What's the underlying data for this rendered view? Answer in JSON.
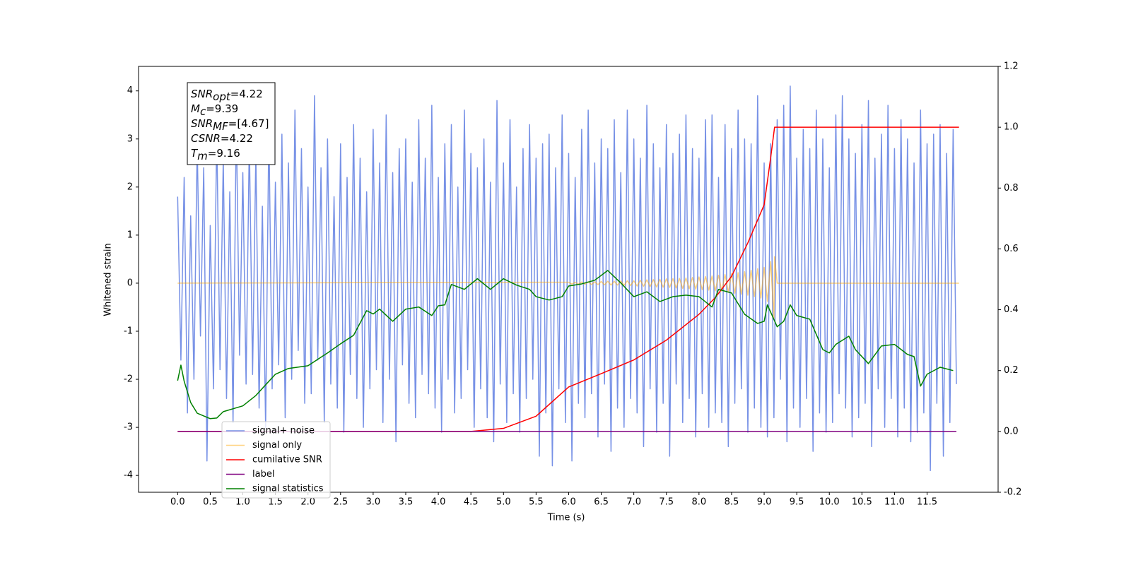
{
  "chart_data": {
    "type": "line",
    "xlabel": "Time (s)",
    "ylabel": "Whitened strain",
    "xlim": [
      -0.6,
      12.59
    ],
    "ylim": [
      -4.35,
      4.51
    ],
    "y2lim": [
      -0.2,
      1.2
    ],
    "xticks": [
      {
        "value": 0,
        "label": "0.0"
      },
      0.5,
      {
        "value": 1,
        "label": "1.0"
      },
      1.5,
      {
        "value": 2,
        "label": "2.0"
      },
      2.5,
      {
        "value": 3,
        "label": "3.0"
      },
      3.5,
      {
        "value": 4,
        "label": "4.0"
      },
      4.5,
      {
        "value": 5,
        "label": "5.0"
      },
      5.5,
      {
        "value": 6,
        "label": "6.0"
      },
      6.5,
      {
        "value": 7,
        "label": "7.0"
      },
      7.5,
      {
        "value": 8,
        "label": "8.0"
      },
      8.5,
      {
        "value": 9,
        "label": "9.0"
      },
      9.5,
      {
        "value": 10,
        "label": "10.0"
      },
      10.5,
      {
        "value": 11,
        "label": "11.0"
      },
      11.5
    ],
    "yticks": [
      -4,
      -3,
      -2,
      -1,
      0,
      1,
      2,
      3,
      4
    ],
    "y2ticks": [
      -0.2,
      {
        "value": 0,
        "label": "0.0"
      },
      0.2,
      0.4,
      0.6,
      0.8,
      {
        "value": 1,
        "label": "1.0"
      },
      1.2
    ],
    "annotation": [
      {
        "main": "SNR",
        "sub": "opt",
        "rest": "=4.22"
      },
      {
        "main": "M",
        "sub": "c",
        "rest": "=9.39"
      },
      {
        "main": "SNR",
        "sub": "MF",
        "rest": "=[4.67]"
      },
      {
        "main": "CSNR",
        "sub": "",
        "rest": "=4.22"
      },
      {
        "main": "T",
        "sub": "m",
        "rest": "=9.16"
      }
    ],
    "legend": "lower left",
    "series": [
      {
        "name": "signal+ noise",
        "color": "#7791e6",
        "axis": "y",
        "x": [
          0,
          0.05,
          0.1,
          0.15,
          0.2,
          0.25,
          0.3,
          0.35,
          0.4,
          0.45,
          0.5,
          0.55,
          0.6,
          0.65,
          0.7,
          0.75,
          0.8,
          0.85,
          0.9,
          0.95,
          1,
          1.05,
          1.1,
          1.15,
          1.2,
          1.25,
          1.3,
          1.35,
          1.4,
          1.45,
          1.5,
          1.55,
          1.6,
          1.65,
          1.7,
          1.75,
          1.8,
          1.85,
          1.9,
          1.95,
          2,
          2.05,
          2.1,
          2.15,
          2.2,
          2.25,
          2.3,
          2.35,
          2.4,
          2.45,
          2.5,
          2.55,
          2.6,
          2.65,
          2.7,
          2.75,
          2.8,
          2.85,
          2.9,
          2.95,
          3,
          3.05,
          3.1,
          3.15,
          3.2,
          3.25,
          3.3,
          3.35,
          3.4,
          3.45,
          3.5,
          3.55,
          3.6,
          3.65,
          3.7,
          3.75,
          3.8,
          3.85,
          3.9,
          3.95,
          4,
          4.05,
          4.1,
          4.15,
          4.2,
          4.25,
          4.3,
          4.35,
          4.4,
          4.45,
          4.5,
          4.55,
          4.6,
          4.65,
          4.7,
          4.75,
          4.8,
          4.85,
          4.9,
          4.95,
          5,
          5.05,
          5.1,
          5.15,
          5.2,
          5.25,
          5.3,
          5.35,
          5.4,
          5.45,
          5.5,
          5.55,
          5.6,
          5.65,
          5.7,
          5.75,
          5.8,
          5.85,
          5.9,
          5.95,
          6,
          6.05,
          6.1,
          6.15,
          6.2,
          6.25,
          6.3,
          6.35,
          6.4,
          6.45,
          6.5,
          6.55,
          6.6,
          6.65,
          6.7,
          6.75,
          6.8,
          6.85,
          6.9,
          6.95,
          7,
          7.05,
          7.1,
          7.15,
          7.2,
          7.25,
          7.3,
          7.35,
          7.4,
          7.45,
          7.5,
          7.55,
          7.6,
          7.65,
          7.7,
          7.75,
          7.8,
          7.85,
          7.9,
          7.95,
          8,
          8.05,
          8.1,
          8.15,
          8.2,
          8.25,
          8.3,
          8.35,
          8.4,
          8.45,
          8.5,
          8.55,
          8.6,
          8.65,
          8.7,
          8.75,
          8.8,
          8.85,
          8.9,
          8.95,
          9,
          9.05,
          9.1,
          9.15,
          9.2,
          9.25,
          9.3,
          9.35,
          9.4,
          9.45,
          9.5,
          9.55,
          9.6,
          9.65,
          9.7,
          9.75,
          9.8,
          9.85,
          9.9,
          9.95,
          10,
          10.05,
          10.1,
          10.15,
          10.2,
          10.25,
          10.3,
          10.35,
          10.4,
          10.45,
          10.5,
          10.55,
          10.6,
          10.65,
          10.7,
          10.75,
          10.8,
          10.85,
          10.9,
          10.95,
          11,
          11.05,
          11.1,
          11.15,
          11.2,
          11.25,
          11.3,
          11.35,
          11.4,
          11.45,
          11.5,
          11.55,
          11.6,
          11.65,
          11.7,
          11.75,
          11.8,
          11.85,
          11.9,
          11.95
        ],
        "values": [
          1.8,
          -1.6,
          2.2,
          -2.7,
          1.4,
          -2.0,
          2.9,
          -1.1,
          2.4,
          -3.7,
          1.2,
          -2.2,
          3.2,
          -1.8,
          2.6,
          -2.4,
          1.9,
          -2.9,
          3.4,
          -1.5,
          2.3,
          -2.1,
          3.0,
          -1.9,
          2.7,
          -2.6,
          1.6,
          -3.0,
          3.3,
          -2.2,
          2.1,
          -1.7,
          3.1,
          -2.8,
          2.5,
          -2.0,
          3.6,
          -1.4,
          2.8,
          -2.5,
          2.0,
          -2.3,
          3.9,
          -1.6,
          2.4,
          -2.9,
          3.0,
          -2.1,
          1.8,
          -2.6,
          2.9,
          -3.1,
          2.2,
          -1.9,
          3.3,
          -2.4,
          2.6,
          -3.0,
          1.9,
          -2.2,
          3.2,
          -1.8,
          2.5,
          -2.9,
          3.5,
          -2.0,
          2.3,
          -3.3,
          2.8,
          -1.7,
          3.0,
          -2.5,
          2.1,
          -2.8,
          3.4,
          -1.9,
          2.6,
          -2.3,
          3.7,
          -2.6,
          2.2,
          -3.1,
          2.9,
          -2.0,
          3.3,
          -2.7,
          2.0,
          -2.4,
          3.6,
          -1.8,
          2.7,
          -3.0,
          2.4,
          -2.2,
          3.0,
          -2.8,
          2.1,
          -3.3,
          3.8,
          -2.1,
          2.5,
          -2.9,
          3.4,
          -2.3,
          2.0,
          -3.1,
          2.8,
          -2.4,
          3.3,
          -2.0,
          2.6,
          -3.6,
          2.9,
          -2.7,
          3.1,
          -3.8,
          2.4,
          -2.2,
          3.5,
          -2.9,
          2.7,
          -3.7,
          2.2,
          -2.5,
          3.2,
          -2.8,
          3.6,
          -2.3,
          2.5,
          -3.2,
          3.0,
          -2.1,
          2.8,
          -3.5,
          3.4,
          -2.6,
          2.3,
          -3.0,
          3.6,
          -2.4,
          3.0,
          -2.7,
          2.6,
          -3.4,
          3.7,
          -2.2,
          2.9,
          -3.1,
          2.4,
          -2.5,
          3.3,
          -3.6,
          2.7,
          -2.1,
          3.1,
          -2.9,
          3.5,
          -2.4,
          2.8,
          -3.2,
          2.6,
          -2.3,
          3.4,
          -3.0,
          3.5,
          -2.7,
          2.2,
          -2.9,
          3.3,
          -3.4,
          2.8,
          -2.5,
          3.6,
          -2.2,
          3.0,
          -3.1,
          2.9,
          -2.6,
          3.9,
          -3.0,
          2.5,
          -3.2,
          2.9,
          -2.8,
          3.4,
          -2.0,
          3.7,
          -3.3,
          4.1,
          -2.6,
          2.6,
          -3.0,
          3.2,
          -2.4,
          2.8,
          -3.5,
          3.6,
          -2.7,
          3.0,
          -3.1,
          2.4,
          -2.9,
          3.5,
          -2.3,
          3.9,
          -2.6,
          3.0,
          -3.2,
          2.7,
          -2.8,
          3.3,
          -2.5,
          3.8,
          -3.4,
          2.6,
          -2.2,
          3.1,
          -3.0,
          3.7,
          -2.4,
          2.8,
          -3.2,
          3.4,
          -2.6,
          3.0,
          -3.3,
          2.5,
          -3.1,
          3.6,
          -2.7,
          2.9,
          -3.9,
          3.1,
          -2.5,
          3.3,
          -3.6,
          2.7,
          -2.9,
          3.2,
          -2.1
        ]
      },
      {
        "name": "signal only",
        "color": "#ffa500",
        "alpha": 0.5,
        "axis": "y",
        "x": [
          0,
          6,
          6.05,
          6.1,
          6.15,
          6.2,
          6.25,
          6.3,
          6.35,
          6.4,
          6.45,
          6.5,
          6.55,
          6.6,
          6.65,
          6.7,
          6.75,
          6.8,
          6.85,
          6.9,
          6.95,
          7,
          7.05,
          7.1,
          7.15,
          7.2,
          7.25,
          7.3,
          7.35,
          7.4,
          7.45,
          7.5,
          7.55,
          7.6,
          7.65,
          7.7,
          7.75,
          7.8,
          7.85,
          7.9,
          7.95,
          8,
          8.05,
          8.1,
          8.15,
          8.2,
          8.25,
          8.3,
          8.35,
          8.4,
          8.45,
          8.5,
          8.55,
          8.6,
          8.65,
          8.7,
          8.75,
          8.8,
          8.85,
          8.9,
          8.95,
          9,
          9.05,
          9.1,
          9.15,
          9.16,
          9.2,
          11.99
        ],
        "values": [
          0,
          0.02,
          -0.02,
          0.02,
          -0.02,
          0.025,
          -0.025,
          0.03,
          -0.03,
          0.03,
          -0.03,
          0.035,
          -0.035,
          0.04,
          -0.04,
          0.04,
          -0.04,
          0.045,
          -0.045,
          0.05,
          -0.05,
          0.05,
          -0.06,
          0.06,
          -0.065,
          0.07,
          -0.07,
          0.075,
          -0.08,
          0.08,
          -0.085,
          0.09,
          -0.09,
          0.095,
          -0.1,
          0.1,
          -0.11,
          0.11,
          -0.115,
          0.12,
          -0.125,
          0.13,
          -0.135,
          0.14,
          -0.145,
          0.15,
          -0.16,
          0.165,
          -0.17,
          0.18,
          -0.19,
          0.2,
          -0.21,
          0.22,
          -0.23,
          0.24,
          -0.25,
          0.27,
          -0.28,
          0.3,
          -0.31,
          0.33,
          -0.38,
          0.45,
          -0.75,
          0.55,
          0,
          0
        ]
      },
      {
        "name": "cumilative SNR",
        "color": "#ff0000",
        "axis": "y2",
        "x": [
          0,
          4.5,
          5,
          5.5,
          6,
          6.5,
          7,
          7.5,
          8,
          8.25,
          8.5,
          8.75,
          9,
          9.1,
          9.16,
          11.99
        ],
        "values": [
          0,
          0,
          0.01,
          0.05,
          0.146,
          0.19,
          0.235,
          0.3,
          0.385,
          0.44,
          0.51,
          0.62,
          0.745,
          0.9,
          1,
          1
        ]
      },
      {
        "name": "label",
        "color": "#800080",
        "axis": "y2",
        "x": [
          0,
          11.95
        ],
        "values": [
          0,
          0
        ]
      },
      {
        "name": "signal statistics",
        "color": "#008000",
        "axis": "y2",
        "x": [
          0,
          0.05,
          0.1,
          0.2,
          0.3,
          0.5,
          0.6,
          0.7,
          1,
          1.2,
          1.5,
          1.7,
          2,
          2.3,
          2.5,
          2.7,
          2.9,
          3,
          3.1,
          3.3,
          3.5,
          3.7,
          3.9,
          4,
          4.1,
          4.2,
          4.4,
          4.6,
          4.8,
          5,
          5.2,
          5.4,
          5.5,
          5.7,
          5.9,
          6,
          6.2,
          6.4,
          6.6,
          6.8,
          7,
          7.2,
          7.4,
          7.6,
          7.8,
          8,
          8.2,
          8.3,
          8.5,
          8.7,
          8.9,
          9,
          9.05,
          9.2,
          9.3,
          9.4,
          9.5,
          9.7,
          9.9,
          10,
          10.1,
          10.3,
          10.4,
          10.6,
          10.8,
          11,
          11.2,
          11.3,
          11.4,
          11.5,
          11.7,
          11.9
        ],
        "values": [
          0.167,
          0.218,
          0.165,
          0.095,
          0.06,
          0.042,
          0.044,
          0.065,
          0.084,
          0.118,
          0.188,
          0.207,
          0.216,
          0.258,
          0.288,
          0.316,
          0.397,
          0.386,
          0.402,
          0.362,
          0.402,
          0.409,
          0.381,
          0.413,
          0.416,
          0.483,
          0.467,
          0.502,
          0.467,
          0.502,
          0.481,
          0.467,
          0.443,
          0.432,
          0.443,
          0.478,
          0.485,
          0.497,
          0.529,
          0.488,
          0.443,
          0.459,
          0.427,
          0.443,
          0.448,
          0.443,
          0.409,
          0.467,
          0.455,
          0.385,
          0.355,
          0.362,
          0.416,
          0.344,
          0.362,
          0.416,
          0.381,
          0.369,
          0.269,
          0.258,
          0.286,
          0.313,
          0.269,
          0.223,
          0.281,
          0.286,
          0.253,
          0.246,
          0.149,
          0.188,
          0.211,
          0.2
        ]
      }
    ]
  }
}
